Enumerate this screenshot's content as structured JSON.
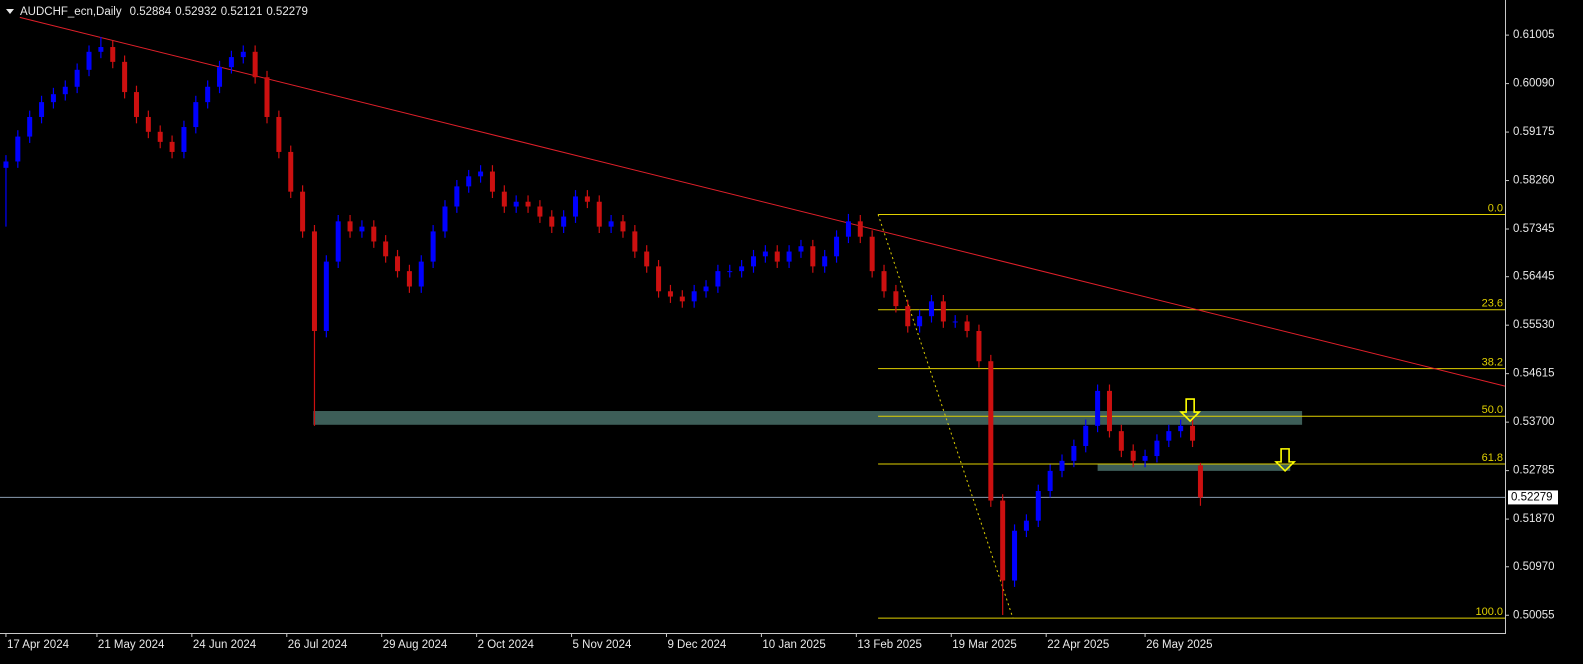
{
  "chart_data": {
    "type": "candlestick",
    "title": "AUDCHF_ecn,Daily",
    "up_color": "#0000ff",
    "down_color": "#cc1010",
    "xlim": [
      -1,
      379
    ],
    "xticks": [
      {
        "value": 0,
        "label": "17 Apr 2024"
      },
      {
        "value": 23,
        "label": "21 May 2024"
      },
      {
        "value": 47,
        "label": "24 Jun 2024"
      },
      {
        "value": 71,
        "label": "26 Jul 2024"
      },
      {
        "value": 95,
        "label": "29 Aug 2024"
      },
      {
        "value": 119,
        "label": "2 Oct 2024"
      },
      {
        "value": 143,
        "label": "5 Nov 2024"
      },
      {
        "value": 167,
        "label": "9 Dec 2024"
      },
      {
        "value": 191,
        "label": "10 Jan 2025"
      },
      {
        "value": 215,
        "label": "13 Feb 2025"
      },
      {
        "value": 239,
        "label": "19 Mar 2025"
      },
      {
        "value": 263,
        "label": "22 Apr 2025"
      },
      {
        "value": 288,
        "label": "26 May 2025"
      }
    ],
    "ylim": [
      0.4972,
      0.6163
    ],
    "yticks": [
      0.61005,
      {
        "value": 0.6009,
        "label": "0.60090"
      },
      0.59175,
      {
        "value": 0.5826,
        "label": "0.58260"
      },
      0.57345,
      0.56445,
      {
        "value": 0.5553,
        "label": "0.55530"
      },
      0.54615,
      {
        "value": 0.537,
        "label": "0.53700"
      },
      0.52785,
      {
        "value": 0.5187,
        "label": "0.51870"
      },
      {
        "value": 0.5097,
        "label": "0.50970"
      },
      0.50055
    ],
    "candles": {
      "x": [
        0,
        3,
        6,
        9,
        12,
        15,
        18,
        21,
        24,
        27,
        30,
        33,
        36,
        39,
        42,
        45,
        48,
        51,
        54,
        57,
        60,
        63,
        66,
        69,
        72,
        75,
        78,
        81,
        84,
        87,
        90,
        93,
        96,
        99,
        102,
        105,
        108,
        111,
        114,
        117,
        120,
        123,
        126,
        129,
        132,
        135,
        138,
        141,
        144,
        147,
        150,
        153,
        156,
        159,
        162,
        165,
        168,
        171,
        174,
        177,
        180,
        183,
        186,
        189,
        192,
        195,
        198,
        201,
        204,
        207,
        210,
        213,
        216,
        219,
        222,
        225,
        228,
        231,
        234,
        237,
        240,
        243,
        246,
        249,
        252,
        255,
        258,
        261,
        264,
        267,
        270,
        273,
        276,
        279,
        282,
        285,
        288,
        291,
        294,
        297,
        300,
        302
      ],
      "open": [
        0.585,
        0.5862,
        0.5909,
        0.5946,
        0.5974,
        0.5989,
        0.6003,
        0.6035,
        0.6069,
        0.6078,
        0.605,
        0.5993,
        0.5946,
        0.5918,
        0.5899,
        0.588,
        0.5927,
        0.5974,
        0.6003,
        0.604,
        0.6059,
        0.6069,
        0.6021,
        0.5946,
        0.588,
        0.5805,
        0.573,
        0.5542,
        0.5673,
        0.5749,
        0.573,
        0.5739,
        0.5711,
        0.5683,
        0.5655,
        0.5626,
        0.5673,
        0.573,
        0.5777,
        0.5815,
        0.5834,
        0.5843,
        0.5805,
        0.5777,
        0.5786,
        0.5777,
        0.5758,
        0.5739,
        0.5758,
        0.5796,
        0.5786,
        0.5739,
        0.5749,
        0.573,
        0.5692,
        0.5664,
        0.5617,
        0.5607,
        0.5598,
        0.5617,
        0.5626,
        0.5655,
        0.5655,
        0.5664,
        0.5683,
        0.5692,
        0.5673,
        0.5692,
        0.5702,
        0.5664,
        0.5683,
        0.572,
        0.5749,
        0.572,
        0.5655,
        0.5617,
        0.5589,
        0.5551,
        0.557,
        0.5598,
        0.556,
        0.556,
        0.5542,
        0.5485,
        0.5222,
        0.5071,
        0.5165,
        0.5184,
        0.524,
        0.5278,
        0.5297,
        0.5325,
        0.5363,
        0.5429,
        0.5353,
        0.5316,
        0.5297,
        0.5306,
        0.5335,
        0.5353,
        0.5363,
        0.52884
      ],
      "high": [
        0.5874,
        0.5921,
        0.5958,
        0.5986,
        0.6001,
        0.6015,
        0.6047,
        0.6081,
        0.6097,
        0.609,
        0.6062,
        0.6005,
        0.5958,
        0.593,
        0.5911,
        0.5939,
        0.5986,
        0.6015,
        0.6052,
        0.6071,
        0.6081,
        0.6081,
        0.6033,
        0.5958,
        0.5892,
        0.5817,
        0.5742,
        0.5685,
        0.5761,
        0.5761,
        0.5751,
        0.5751,
        0.5723,
        0.5695,
        0.5667,
        0.5685,
        0.5742,
        0.5789,
        0.5827,
        0.5846,
        0.5855,
        0.5855,
        0.5817,
        0.5798,
        0.5798,
        0.5789,
        0.577,
        0.577,
        0.5808,
        0.5808,
        0.5798,
        0.5761,
        0.5761,
        0.5742,
        0.5704,
        0.5676,
        0.5629,
        0.5619,
        0.5629,
        0.5638,
        0.5667,
        0.5667,
        0.5676,
        0.5695,
        0.5704,
        0.5704,
        0.5704,
        0.5714,
        0.5714,
        0.5695,
        0.5732,
        0.5763,
        0.5761,
        0.5732,
        0.5667,
        0.5629,
        0.5601,
        0.5582,
        0.561,
        0.561,
        0.5572,
        0.5572,
        0.5554,
        0.5497,
        0.5234,
        0.5177,
        0.5196,
        0.5252,
        0.529,
        0.5309,
        0.5337,
        0.5375,
        0.5441,
        0.5441,
        0.5365,
        0.5328,
        0.5318,
        0.5347,
        0.5365,
        0.5375,
        0.5375,
        0.52932
      ],
      "low": [
        0.5739,
        0.585,
        0.5897,
        0.5934,
        0.5962,
        0.5977,
        0.5991,
        0.6023,
        0.6057,
        0.6038,
        0.5981,
        0.5934,
        0.5906,
        0.5887,
        0.5868,
        0.5868,
        0.5915,
        0.5962,
        0.5991,
        0.6028,
        0.6047,
        0.6009,
        0.5934,
        0.5868,
        0.5793,
        0.5718,
        0.5363,
        0.553,
        0.5661,
        0.5718,
        0.5718,
        0.5699,
        0.5671,
        0.5643,
        0.5614,
        0.5614,
        0.5661,
        0.5718,
        0.5765,
        0.5803,
        0.5822,
        0.5793,
        0.5765,
        0.5765,
        0.5765,
        0.5746,
        0.5727,
        0.5727,
        0.5746,
        0.5774,
        0.5727,
        0.5727,
        0.5718,
        0.568,
        0.5652,
        0.5605,
        0.5595,
        0.5586,
        0.5586,
        0.5605,
        0.5614,
        0.5643,
        0.5643,
        0.5652,
        0.5671,
        0.5661,
        0.5661,
        0.568,
        0.5652,
        0.5652,
        0.5671,
        0.5708,
        0.5708,
        0.5643,
        0.5605,
        0.5577,
        0.5539,
        0.5539,
        0.5558,
        0.5548,
        0.5548,
        0.553,
        0.5473,
        0.521,
        0.5006,
        0.5059,
        0.5153,
        0.5172,
        0.5228,
        0.5266,
        0.5285,
        0.5313,
        0.5351,
        0.5341,
        0.5304,
        0.5285,
        0.5285,
        0.5294,
        0.5323,
        0.5341,
        0.5323,
        0.52121
      ],
      "close": [
        0.5862,
        0.5909,
        0.5946,
        0.5974,
        0.5989,
        0.6003,
        0.6035,
        0.6069,
        0.6078,
        0.605,
        0.5993,
        0.5946,
        0.5918,
        0.5899,
        0.588,
        0.5927,
        0.5974,
        0.6003,
        0.604,
        0.6059,
        0.6069,
        0.6021,
        0.5946,
        0.588,
        0.5805,
        0.573,
        0.5542,
        0.5673,
        0.5749,
        0.573,
        0.5739,
        0.5711,
        0.5683,
        0.5655,
        0.5626,
        0.5673,
        0.573,
        0.5777,
        0.5815,
        0.5834,
        0.5843,
        0.5805,
        0.5777,
        0.5786,
        0.5777,
        0.5758,
        0.5739,
        0.5758,
        0.5796,
        0.5786,
        0.5739,
        0.5749,
        0.573,
        0.5692,
        0.5664,
        0.5617,
        0.5607,
        0.5598,
        0.5617,
        0.5626,
        0.5655,
        0.5655,
        0.5664,
        0.5683,
        0.5692,
        0.5673,
        0.5692,
        0.5702,
        0.5664,
        0.5683,
        0.572,
        0.5749,
        0.572,
        0.5655,
        0.5617,
        0.5589,
        0.5551,
        0.557,
        0.5598,
        0.556,
        0.556,
        0.5542,
        0.5485,
        0.5222,
        0.5071,
        0.5165,
        0.5184,
        0.524,
        0.5278,
        0.5297,
        0.5325,
        0.5363,
        0.5429,
        0.5353,
        0.5316,
        0.5297,
        0.5306,
        0.5335,
        0.5353,
        0.5363,
        0.5335,
        0.52279
      ]
    },
    "trendline": {
      "x": [
        3.5,
        379
      ],
      "y": [
        0.6134,
        0.5438
      ],
      "color": "#e0202a"
    },
    "fibonacci": {
      "x_start": 220.5,
      "x_low": 254.6,
      "high": 0.5762,
      "low": 0.5,
      "color": "#e0d000",
      "levels": [
        {
          "value": 0,
          "label": "0.0"
        },
        23.6,
        38.2,
        {
          "value": 50,
          "label": "50.0"
        },
        61.8,
        {
          "value": 100,
          "label": "100.0"
        }
      ]
    },
    "zones": [
      {
        "x": [
          77.7,
          327.7
        ],
        "y": [
          0.5365,
          0.5391
        ],
        "color": "#3d5e58"
      },
      {
        "x": [
          276,
          324.7
        ],
        "y": [
          0.5278,
          0.5291
        ],
        "color": "#3d5e58"
      }
    ],
    "arrows": [
      {
        "x": 299.4,
        "y": 0.5372,
        "color": "#ffff00"
      },
      {
        "x": 323.4,
        "y": 0.5278,
        "color": "#ffff00"
      }
    ],
    "price_line_color": "#8a9bb0"
  }
}
